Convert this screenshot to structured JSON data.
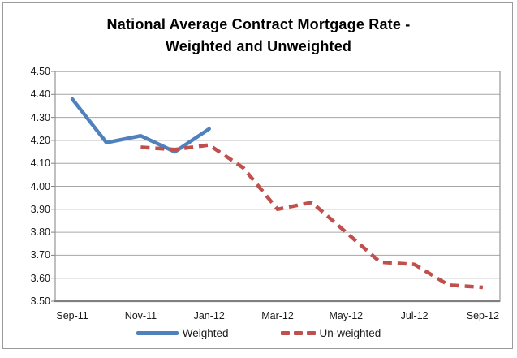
{
  "chart_data": {
    "type": "line",
    "title": "National Average Contract Mortgage Rate - Weighted and Unweighted",
    "title_lines": [
      "National Average Contract Mortgage Rate -",
      "Weighted and Unweighted"
    ],
    "categories": [
      "Sep-11",
      "Oct-11",
      "Nov-11",
      "Dec-11",
      "Jan-12",
      "Feb-12",
      "Mar-12",
      "Apr-12",
      "May-12",
      "Jun-12",
      "Jul-12",
      "Aug-12",
      "Sep-12"
    ],
    "x_tick_labels": [
      "Sep-11",
      "Nov-11",
      "Jan-12",
      "Mar-12",
      "May-12",
      "Jul-12",
      "Sep-12"
    ],
    "y_tick_labels": [
      "4.50",
      "4.40",
      "4.30",
      "4.20",
      "4.10",
      "4.00",
      "3.90",
      "3.80",
      "3.70",
      "3.60",
      "3.50"
    ],
    "ylim": [
      3.5,
      4.5
    ],
    "y_step": 0.1,
    "grid": "horizontal",
    "legend_position": "bottom",
    "series": [
      {
        "name": "Weighted",
        "style": "solid",
        "color": "#4F81BD",
        "values": [
          4.38,
          4.19,
          4.22,
          4.15,
          4.25,
          null,
          null,
          null,
          null,
          null,
          null,
          null,
          null
        ]
      },
      {
        "name": "Un-weighted",
        "style": "dashed",
        "color": "#C0504D",
        "values": [
          null,
          null,
          4.17,
          4.16,
          4.18,
          4.08,
          3.9,
          3.93,
          3.8,
          3.67,
          3.66,
          3.57,
          3.56
        ]
      }
    ]
  },
  "colors": {
    "gridline": "#A6A6A6",
    "axis": "#808080",
    "plot_border": "#959595",
    "text": "#1A1A1A",
    "frame_border": "#9B9B9B",
    "background": "#FFFFFF"
  }
}
